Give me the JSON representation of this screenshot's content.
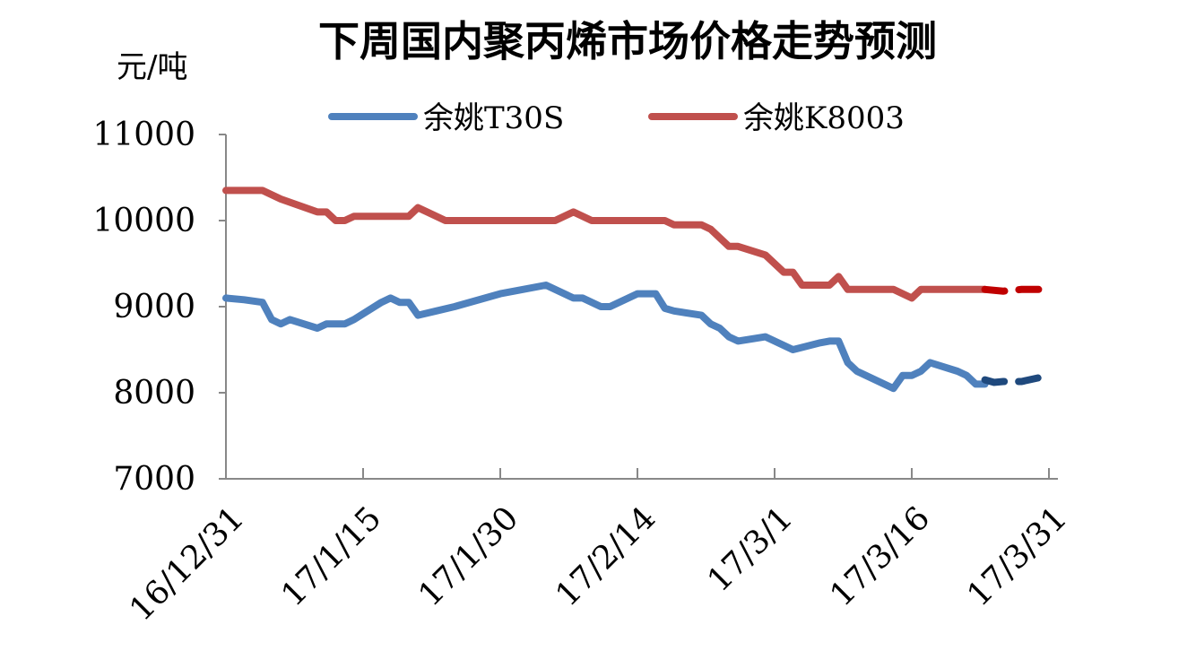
{
  "chart_data": {
    "type": "line",
    "title": "下周国内聚丙烯市场价格走势预测",
    "ylabel": "元/吨",
    "xlabel": "",
    "ylim": [
      7000,
      11000
    ],
    "yticks": [
      "11000",
      "10000",
      "9000",
      "8000",
      "7000"
    ],
    "xlim": [
      "2016-12-31",
      "2017-03-31"
    ],
    "xtick_labels": [
      "16/12/31",
      "17/1/15",
      "17/1/30",
      "17/2/14",
      "17/3/1",
      "17/3/16",
      "17/3/31"
    ],
    "xtick_dates": [
      "2016-12-31",
      "2017-01-15",
      "2017-01-30",
      "2017-02-14",
      "2017-03-01",
      "2017-03-16",
      "2017-03-31"
    ],
    "legend_position": "top",
    "grid": false,
    "series": [
      {
        "name": "余姚T30S",
        "color": "#4f81bd",
        "forecast_color": "#1f497d",
        "points": [
          [
            "2016-12-31",
            9100
          ],
          [
            "2017-01-02",
            9080
          ],
          [
            "2017-01-04",
            9050
          ],
          [
            "2017-01-05",
            8850
          ],
          [
            "2017-01-06",
            8800
          ],
          [
            "2017-01-07",
            8850
          ],
          [
            "2017-01-10",
            8750
          ],
          [
            "2017-01-11",
            8800
          ],
          [
            "2017-01-13",
            8800
          ],
          [
            "2017-01-14",
            8850
          ],
          [
            "2017-01-17",
            9050
          ],
          [
            "2017-01-18",
            9100
          ],
          [
            "2017-01-19",
            9050
          ],
          [
            "2017-01-20",
            9050
          ],
          [
            "2017-01-21",
            8900
          ],
          [
            "2017-01-23",
            8950
          ],
          [
            "2017-01-25",
            9000
          ],
          [
            "2017-01-30",
            9150
          ],
          [
            "2017-02-04",
            9250
          ],
          [
            "2017-02-07",
            9100
          ],
          [
            "2017-02-08",
            9100
          ],
          [
            "2017-02-10",
            9000
          ],
          [
            "2017-02-11",
            9000
          ],
          [
            "2017-02-14",
            9150
          ],
          [
            "2017-02-16",
            9150
          ],
          [
            "2017-02-17",
            8980
          ],
          [
            "2017-02-18",
            8950
          ],
          [
            "2017-02-21",
            8900
          ],
          [
            "2017-02-22",
            8800
          ],
          [
            "2017-02-23",
            8750
          ],
          [
            "2017-02-24",
            8650
          ],
          [
            "2017-02-25",
            8600
          ],
          [
            "2017-02-28",
            8650
          ],
          [
            "2017-03-03",
            8500
          ],
          [
            "2017-03-06",
            8580
          ],
          [
            "2017-03-07",
            8600
          ],
          [
            "2017-03-08",
            8600
          ],
          [
            "2017-03-09",
            8350
          ],
          [
            "2017-03-10",
            8250
          ],
          [
            "2017-03-14",
            8050
          ],
          [
            "2017-03-15",
            8200
          ],
          [
            "2017-03-16",
            8200
          ],
          [
            "2017-03-17",
            8250
          ],
          [
            "2017-03-18",
            8350
          ],
          [
            "2017-03-21",
            8250
          ],
          [
            "2017-03-22",
            8200
          ],
          [
            "2017-03-23",
            8100
          ],
          [
            "2017-03-24",
            8100
          ]
        ],
        "forecast": [
          [
            "2017-03-24",
            8150
          ],
          [
            "2017-03-25",
            8120
          ],
          [
            "2017-03-26",
            8130
          ],
          [
            "2017-03-28",
            8130
          ],
          [
            "2017-03-31",
            8200
          ]
        ]
      },
      {
        "name": "余姚K8003",
        "color": "#c0504d",
        "forecast_color": "#c00000",
        "points": [
          [
            "2016-12-31",
            10350
          ],
          [
            "2017-01-04",
            10350
          ],
          [
            "2017-01-06",
            10250
          ],
          [
            "2017-01-10",
            10100
          ],
          [
            "2017-01-11",
            10100
          ],
          [
            "2017-01-12",
            10000
          ],
          [
            "2017-01-13",
            10000
          ],
          [
            "2017-01-14",
            10050
          ],
          [
            "2017-01-20",
            10050
          ],
          [
            "2017-01-21",
            10150
          ],
          [
            "2017-01-22",
            10100
          ],
          [
            "2017-01-24",
            10000
          ],
          [
            "2017-02-05",
            10000
          ],
          [
            "2017-02-07",
            10100
          ],
          [
            "2017-02-09",
            10000
          ],
          [
            "2017-02-17",
            10000
          ],
          [
            "2017-02-18",
            9950
          ],
          [
            "2017-02-21",
            9950
          ],
          [
            "2017-02-22",
            9900
          ],
          [
            "2017-02-24",
            9700
          ],
          [
            "2017-02-25",
            9700
          ],
          [
            "2017-02-28",
            9600
          ],
          [
            "2017-03-02",
            9400
          ],
          [
            "2017-03-03",
            9400
          ],
          [
            "2017-03-04",
            9250
          ],
          [
            "2017-03-07",
            9250
          ],
          [
            "2017-03-08",
            9350
          ],
          [
            "2017-03-09",
            9200
          ],
          [
            "2017-03-14",
            9200
          ],
          [
            "2017-03-16",
            9100
          ],
          [
            "2017-03-17",
            9200
          ],
          [
            "2017-03-24",
            9200
          ]
        ],
        "forecast": [
          [
            "2017-03-24",
            9200
          ],
          [
            "2017-03-26",
            9180
          ],
          [
            "2017-03-28",
            9200
          ],
          [
            "2017-03-31",
            9200
          ]
        ]
      }
    ]
  }
}
